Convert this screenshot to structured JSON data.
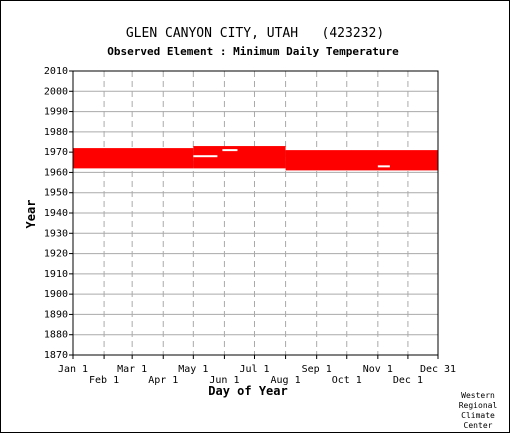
{
  "chart_data": {
    "type": "heatmap",
    "title": "GLEN CANYON CITY, UTAH   (423232)",
    "subtitle": "Observed Element : Minimum Daily Temperature",
    "xlabel": "Day of Year",
    "ylabel": "Year",
    "xlim": [
      1,
      365
    ],
    "ylim": [
      1870,
      2010
    ],
    "y_ticks": [
      1870,
      1880,
      1890,
      1900,
      1910,
      1920,
      1930,
      1940,
      1950,
      1960,
      1970,
      1980,
      1990,
      2000,
      2010
    ],
    "x_ticks_upper": [
      {
        "label": "Jan 1",
        "day": 1
      },
      {
        "label": "Mar 1",
        "day": 60
      },
      {
        "label": "May 1",
        "day": 121
      },
      {
        "label": "Jul 1",
        "day": 182
      },
      {
        "label": "Sep 1",
        "day": 244
      },
      {
        "label": "Nov 1",
        "day": 305
      },
      {
        "label": "Dec 31",
        "day": 365
      }
    ],
    "x_ticks_lower": [
      {
        "label": "Feb 1",
        "day": 32
      },
      {
        "label": "Apr 1",
        "day": 91
      },
      {
        "label": "Jun 1",
        "day": 152
      },
      {
        "label": "Aug 1",
        "day": 213
      },
      {
        "label": "Oct 1",
        "day": 274
      },
      {
        "label": "Dec 1",
        "day": 335
      }
    ],
    "grid": true,
    "series": [
      {
        "color": "#ff0000",
        "segments": [
          {
            "day_start": 1,
            "day_end": 121,
            "year_start": 1962,
            "year_end": 1972
          },
          {
            "day_start": 121,
            "day_end": 213,
            "year_start": 1962,
            "year_end": 1973
          },
          {
            "day_start": 213,
            "day_end": 365,
            "year_start": 1961,
            "year_end": 1971
          }
        ],
        "gaps": [
          {
            "day_start": 121,
            "day_end": 145,
            "year": 1968
          },
          {
            "day_start": 150,
            "day_end": 165,
            "year": 1971
          },
          {
            "day_start": 305,
            "day_end": 317,
            "year": 1963
          }
        ]
      }
    ]
  },
  "credit": [
    "Western",
    "Regional",
    "Climate",
    "Center"
  ]
}
